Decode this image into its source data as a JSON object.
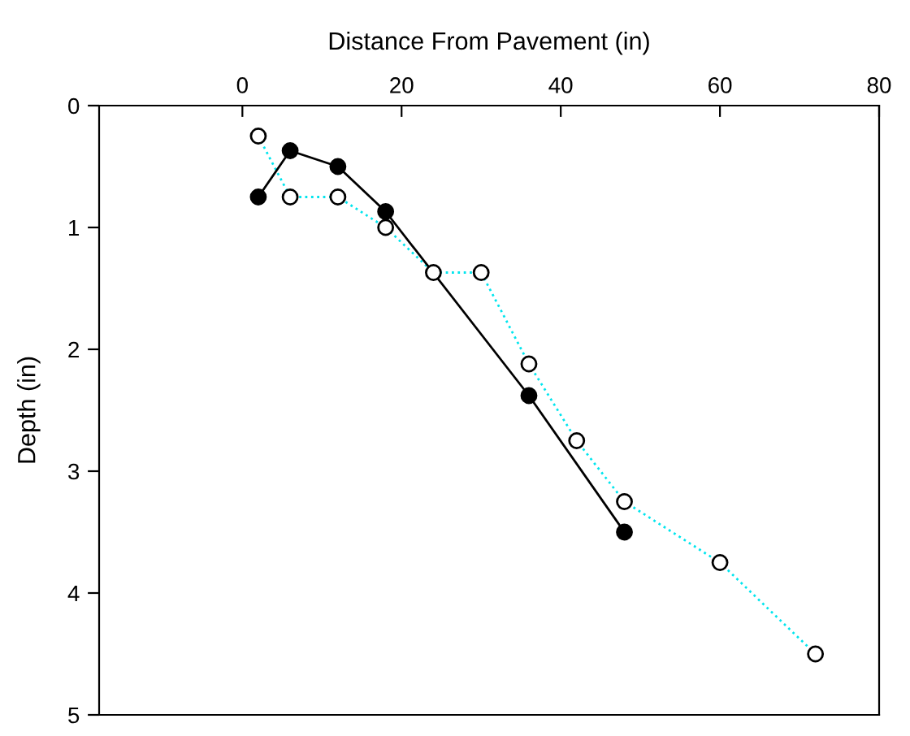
{
  "chart_data": {
    "type": "line",
    "xlabel": "Distance From Pavement (in)",
    "ylabel": "Depth (in)",
    "xlim": [
      -18,
      80
    ],
    "xticks": [
      0,
      20,
      40,
      60,
      80
    ],
    "ylim": [
      5,
      0
    ],
    "yticks": [
      0,
      1,
      2,
      3,
      4,
      5
    ],
    "grid": false,
    "legend": false,
    "series": [
      {
        "x": [
          2,
          6,
          12,
          18,
          24,
          30,
          36,
          42,
          48,
          60,
          72
        ],
        "values": [
          0.25,
          0.75,
          0.75,
          1.0,
          1.37,
          1.37,
          2.12,
          2.75,
          3.25,
          3.75,
          4.5
        ],
        "color": "#00e5ee",
        "line_style": "dotted",
        "marker": "circle"
      },
      {
        "x": [
          2,
          6,
          12,
          18,
          36,
          48
        ],
        "values": [
          0.75,
          0.37,
          0.5,
          0.87,
          2.38,
          3.5
        ],
        "color": "#000000",
        "line_style": "solid",
        "marker": "circle"
      }
    ]
  }
}
